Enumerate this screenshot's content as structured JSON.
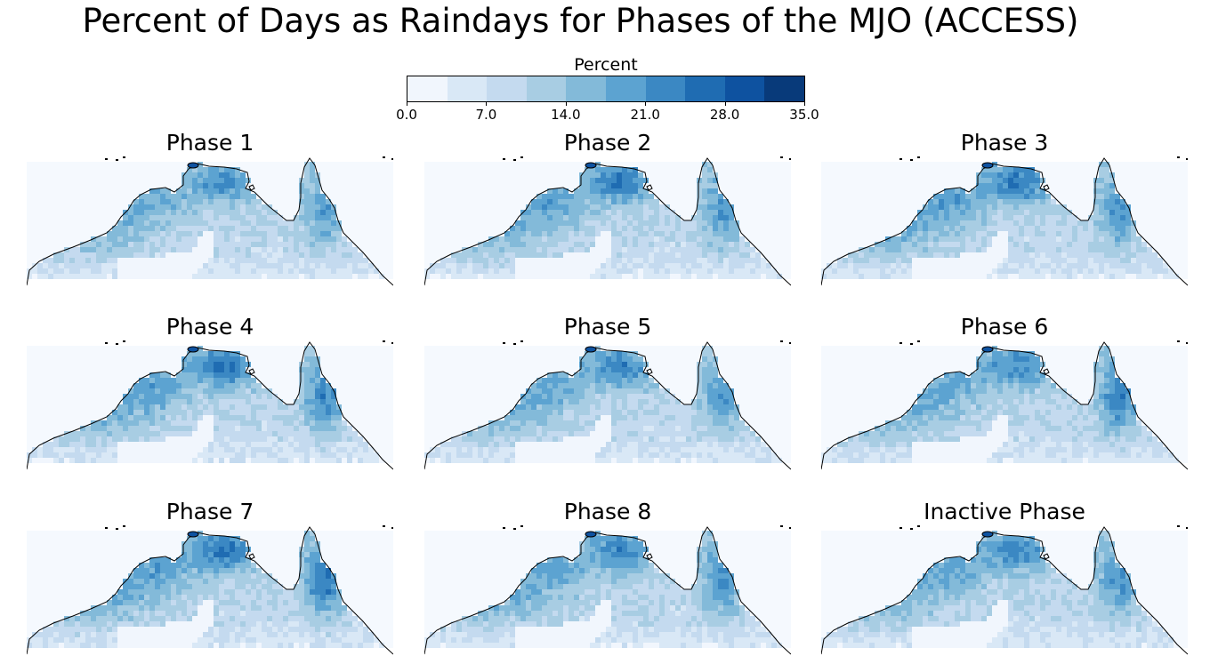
{
  "title": "Percent of Days as Raindays for Phases of the MJO (ACCESS)",
  "colorbar": {
    "label": "Percent",
    "ticks": [
      "0.0",
      "7.0",
      "14.0",
      "21.0",
      "28.0",
      "35.0"
    ],
    "tick_values": [
      0,
      7,
      14,
      21,
      28,
      35
    ],
    "range": [
      0,
      35
    ],
    "bins": 10,
    "colors": [
      "#f1f6fd",
      "#d9e8f6",
      "#c4daef",
      "#a8cde3",
      "#83bad9",
      "#5ca3d1",
      "#3b88c3",
      "#1f6cb2",
      "#0e52a0",
      "#083a7a"
    ]
  },
  "panels": [
    {
      "title": "Phase 1",
      "intensity": 0.8,
      "north_hotspot": 0.7,
      "east_hotspot": 0.65
    },
    {
      "title": "Phase 2",
      "intensity": 0.9,
      "north_hotspot": 0.95,
      "east_hotspot": 0.7
    },
    {
      "title": "Phase 3",
      "intensity": 1.0,
      "north_hotspot": 1.0,
      "east_hotspot": 0.75
    },
    {
      "title": "Phase 4",
      "intensity": 1.0,
      "north_hotspot": 1.0,
      "east_hotspot": 0.85
    },
    {
      "title": "Phase 5",
      "intensity": 0.9,
      "north_hotspot": 0.85,
      "east_hotspot": 0.7
    },
    {
      "title": "Phase 6",
      "intensity": 0.92,
      "north_hotspot": 0.8,
      "east_hotspot": 0.95
    },
    {
      "title": "Phase 7",
      "intensity": 1.0,
      "north_hotspot": 1.0,
      "east_hotspot": 1.0
    },
    {
      "title": "Phase 8",
      "intensity": 0.9,
      "north_hotspot": 0.85,
      "east_hotspot": 0.8
    },
    {
      "title": "Inactive Phase",
      "intensity": 0.88,
      "north_hotspot": 0.85,
      "east_hotspot": 0.75
    }
  ]
}
